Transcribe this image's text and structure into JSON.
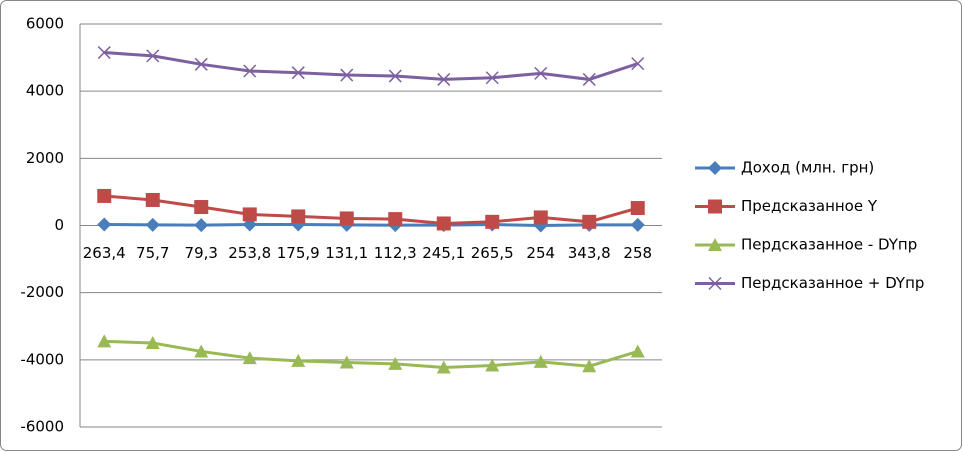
{
  "chart_data": {
    "type": "line",
    "categories": [
      "263,4",
      "75,7",
      "79,3",
      "253,8",
      "175,9",
      "131,1",
      "112,3",
      "245,1",
      "265,5",
      "254",
      "343,8",
      "258"
    ],
    "series": [
      {
        "name": "Доход (млн. грн)",
        "color": "#4a7ebb",
        "marker": "diamond",
        "values": [
          30,
          20,
          10,
          30,
          30,
          20,
          10,
          10,
          30,
          0,
          20,
          20
        ]
      },
      {
        "name": "Предсказанное Y",
        "color": "#be4b48",
        "marker": "square",
        "values": [
          880,
          760,
          550,
          330,
          270,
          210,
          190,
          60,
          110,
          240,
          110,
          520
        ]
      },
      {
        "name": "Пердсказанное - DYпр",
        "color": "#98b954",
        "marker": "triangle",
        "values": [
          -3450,
          -3500,
          -3750,
          -3950,
          -4030,
          -4080,
          -4120,
          -4230,
          -4170,
          -4060,
          -4190,
          -3750
        ]
      },
      {
        "name": "Пердсказанное + DYпр",
        "color": "#7d60a0",
        "marker": "x",
        "values": [
          5150,
          5050,
          4800,
          4600,
          4550,
          4480,
          4450,
          4350,
          4400,
          4530,
          4350,
          4820
        ]
      }
    ],
    "ylim": [
      -6000,
      6000
    ],
    "yticks": [
      -6000,
      -4000,
      -2000,
      0,
      2000,
      4000,
      6000
    ],
    "grid": true,
    "legend": "right"
  }
}
